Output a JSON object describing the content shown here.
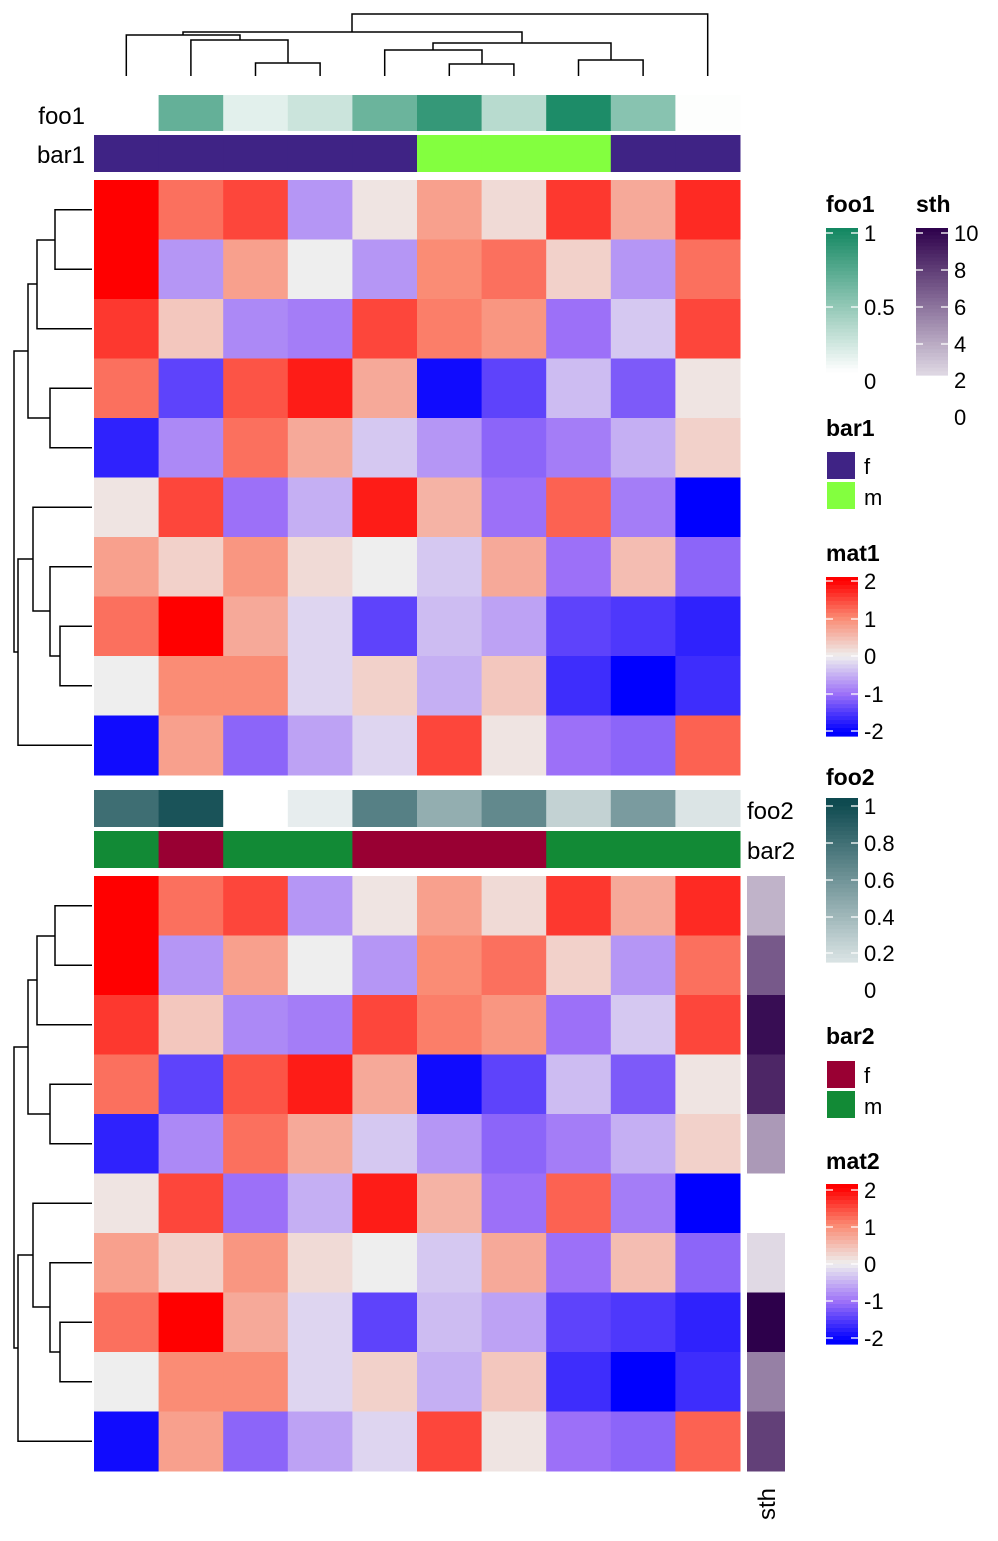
{
  "chart_data": {
    "type": "heatmap",
    "columns": 10,
    "rows": 10,
    "matrices": [
      {
        "name": "mat1",
        "values": [
          [
            2.0,
            1.2,
            1.5,
            -0.7,
            0.1,
            0.8,
            0.2,
            1.6,
            0.7,
            1.7
          ],
          [
            2.1,
            -0.7,
            0.8,
            0.0,
            -0.7,
            1.0,
            1.2,
            0.3,
            -0.7,
            1.2
          ],
          [
            1.6,
            0.4,
            -0.8,
            -0.9,
            1.5,
            1.1,
            0.9,
            -1.0,
            -0.3,
            1.5
          ],
          [
            1.2,
            -1.4,
            1.4,
            1.8,
            0.7,
            -1.9,
            -1.4,
            -0.4,
            -1.2,
            0.1
          ],
          [
            -1.7,
            -0.8,
            1.2,
            0.7,
            -0.3,
            -0.7,
            -1.1,
            -0.9,
            -0.5,
            0.3
          ],
          [
            0.1,
            1.5,
            -1.0,
            -0.5,
            1.8,
            0.6,
            -1.0,
            1.3,
            -0.9,
            -2.0
          ],
          [
            0.8,
            0.3,
            0.9,
            0.2,
            0.0,
            -0.3,
            0.7,
            -1.0,
            0.5,
            -1.1
          ],
          [
            1.2,
            2.1,
            0.7,
            -0.2,
            -1.4,
            -0.4,
            -0.6,
            -1.4,
            -1.5,
            -1.7
          ],
          [
            0.0,
            1.0,
            1.0,
            -0.2,
            0.3,
            -0.5,
            0.4,
            -1.6,
            -2.0,
            -1.6
          ],
          [
            -1.9,
            0.8,
            -1.1,
            -0.6,
            -0.2,
            1.5,
            0.1,
            -1.0,
            -1.1,
            1.3
          ]
        ]
      },
      {
        "name": "mat2",
        "same_as": "mat1"
      }
    ],
    "column_annotations": {
      "foo1": [
        null,
        0.65,
        0.12,
        0.22,
        0.62,
        0.85,
        0.3,
        0.95,
        0.5,
        0.01
      ],
      "bar1": [
        "f",
        "f",
        "f",
        "f",
        "f",
        "m",
        "m",
        "m",
        "f",
        "f"
      ],
      "foo2": [
        0.8,
        0.95,
        null,
        0.1,
        0.7,
        0.45,
        0.65,
        0.25,
        0.55,
        0.15
      ],
      "bar2": [
        "m",
        "f",
        "m",
        "m",
        "f",
        "f",
        "f",
        "m",
        "m",
        "m"
      ]
    },
    "row_annotations": {
      "sth": [
        3,
        6.5,
        9.5,
        8.5,
        4,
        null,
        1.5,
        10,
        5,
        7.5
      ]
    },
    "column_dendrogram": "((1,(2,(3,4))),((5,(6,7)),(8,9))),10)",
    "row_dendrogram": "(((3,(1,2)),(4,5)),(10,(6,(7,(8,9)))))",
    "color_scales": {
      "mat": {
        "-2": "#0000FF",
        "-1": "#9C70F8",
        "0": "#EEEEEE",
        "1": "#FA8C75",
        "2": "#FF0000"
      },
      "foo1": {
        "0": "#FFFFFF",
        "1": "#118660"
      },
      "foo2": {
        "0": "#FFFFFF",
        "1": "#0E4A50"
      },
      "sth": {
        "0": "#FFFFFF",
        "10": "#2D004B"
      },
      "bar1": {
        "f": "#3F2385",
        "m": "#83FF3F"
      },
      "bar2": {
        "f": "#990033",
        "m": "#128A36"
      }
    }
  },
  "labels": {
    "foo1": "foo1",
    "bar1": "bar1",
    "foo2": "foo2",
    "bar2": "bar2",
    "sth": "sth"
  },
  "legends": {
    "foo1": {
      "title": "foo1",
      "ticks": [
        "1",
        "0.5",
        "0"
      ]
    },
    "sth": {
      "title": "sth",
      "ticks": [
        "10",
        "8",
        "6",
        "4",
        "2",
        "0"
      ]
    },
    "bar1": {
      "title": "bar1",
      "items": [
        "f",
        "m"
      ]
    },
    "mat1": {
      "title": "mat1",
      "ticks": [
        "2",
        "1",
        "0",
        "-1",
        "-2"
      ]
    },
    "foo2": {
      "title": "foo2",
      "ticks": [
        "1",
        "0.8",
        "0.6",
        "0.4",
        "0.2",
        "0"
      ]
    },
    "bar2": {
      "title": "bar2",
      "items": [
        "f",
        "m"
      ]
    },
    "mat2": {
      "title": "mat2",
      "ticks": [
        "2",
        "1",
        "0",
        "-1",
        "-2"
      ]
    }
  }
}
